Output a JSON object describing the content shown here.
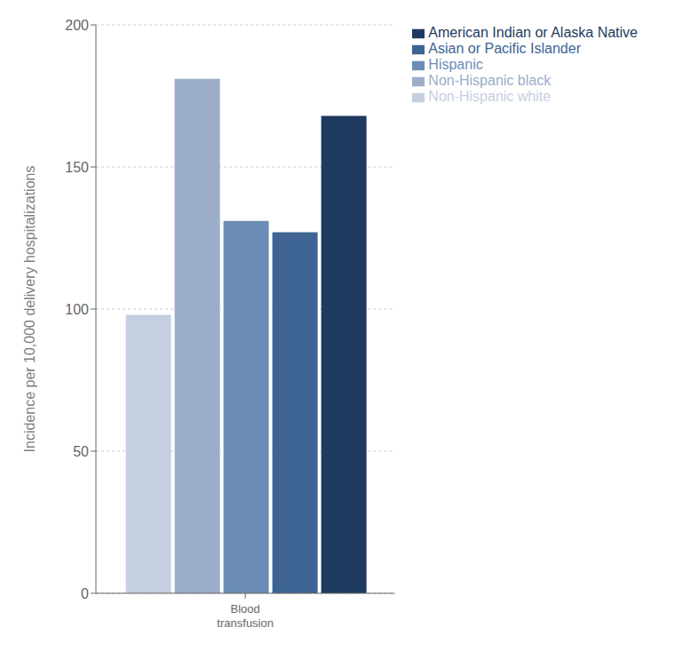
{
  "chart_data": {
    "type": "bar",
    "categories": [
      "Blood\ntransfusion"
    ],
    "series": [
      {
        "name": "Non-Hispanic white",
        "color": "#c5cfe0",
        "values": [
          98
        ]
      },
      {
        "name": "Non-Hispanic black",
        "color": "#9badc8",
        "values": [
          181
        ]
      },
      {
        "name": "Hispanic",
        "color": "#6b8db5",
        "values": [
          131
        ]
      },
      {
        "name": "Asian or Pacific Islander",
        "color": "#3d6493",
        "values": [
          127
        ]
      },
      {
        "name": "American Indian or Alaska Native",
        "color": "#1e3a5f",
        "values": [
          168
        ]
      }
    ],
    "ylabel": "Incidence per 10,000 delivery hospitalizations",
    "ylim": [
      0,
      200
    ],
    "yticks": [
      0,
      50,
      100,
      150,
      200
    ],
    "grid": true,
    "legend": "upper right"
  }
}
